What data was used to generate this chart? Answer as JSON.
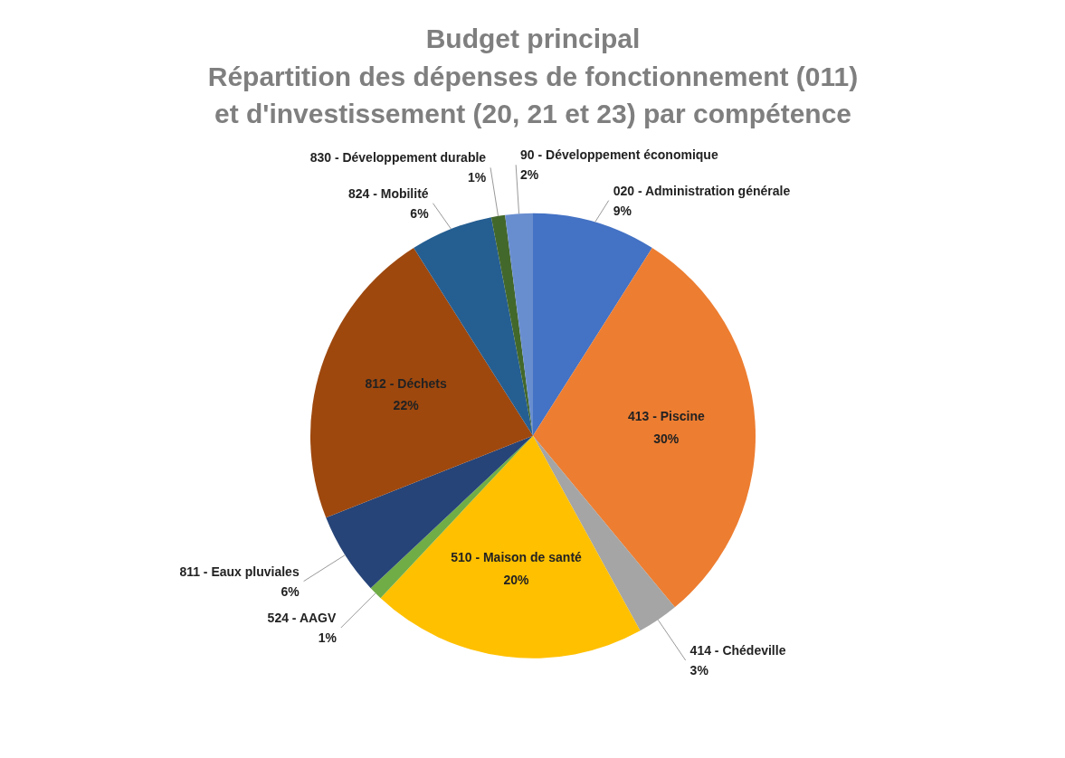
{
  "chart_data": {
    "type": "pie",
    "title": "Budget principal",
    "subtitle": "Répartition des dépenses de fonctionnement (011) et d'investissement (20, 21 et 23) par compétence",
    "categories": [
      "020 - Administration générale",
      "413 - Piscine",
      "414 - Chédeville",
      "510 - Maison de santé",
      "524 - AAGV",
      "811 - Eaux pluviales",
      "812 - Déchets",
      "824 - Mobilité",
      "830 - Développement durable",
      "90 - Développement économique"
    ],
    "values": [
      9,
      30,
      3,
      20,
      1,
      6,
      22,
      6,
      1,
      2
    ],
    "value_labels": [
      "9%",
      "30%",
      "3%",
      "20%",
      "1%",
      "6%",
      "22%",
      "6%",
      "1%",
      "2%"
    ],
    "colors": [
      "#4472c4",
      "#ed7d31",
      "#a5a5a5",
      "#ffc000",
      "#70ad47",
      "#264478",
      "#9e480e",
      "#255e91",
      "#43682b",
      "#698ed0"
    ]
  }
}
